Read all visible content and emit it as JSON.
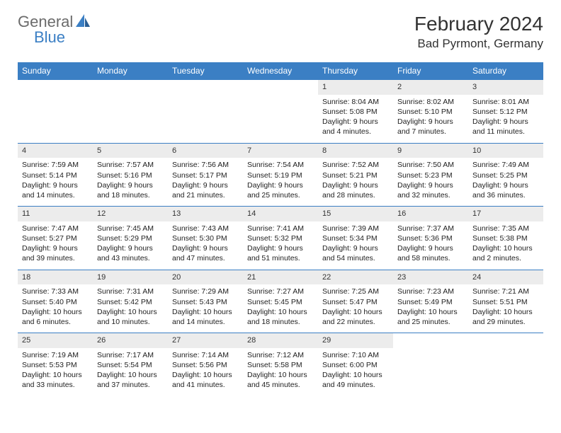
{
  "logo": {
    "general": "General",
    "blue": "Blue"
  },
  "title": "February 2024",
  "location": "Bad Pyrmont, Germany",
  "colors": {
    "header_bg": "#3b7fc4",
    "header_text": "#ffffff",
    "daynum_bg": "#ececec",
    "border": "#3b7fc4",
    "text": "#222222",
    "logo_gray": "#6b6b6b",
    "logo_blue": "#3b7fc4"
  },
  "day_headers": [
    "Sunday",
    "Monday",
    "Tuesday",
    "Wednesday",
    "Thursday",
    "Friday",
    "Saturday"
  ],
  "weeks": [
    [
      {
        "empty": true
      },
      {
        "empty": true
      },
      {
        "empty": true
      },
      {
        "empty": true
      },
      {
        "num": "1",
        "sunrise": "Sunrise: 8:04 AM",
        "sunset": "Sunset: 5:08 PM",
        "day1": "Daylight: 9 hours",
        "day2": "and 4 minutes."
      },
      {
        "num": "2",
        "sunrise": "Sunrise: 8:02 AM",
        "sunset": "Sunset: 5:10 PM",
        "day1": "Daylight: 9 hours",
        "day2": "and 7 minutes."
      },
      {
        "num": "3",
        "sunrise": "Sunrise: 8:01 AM",
        "sunset": "Sunset: 5:12 PM",
        "day1": "Daylight: 9 hours",
        "day2": "and 11 minutes."
      }
    ],
    [
      {
        "num": "4",
        "sunrise": "Sunrise: 7:59 AM",
        "sunset": "Sunset: 5:14 PM",
        "day1": "Daylight: 9 hours",
        "day2": "and 14 minutes."
      },
      {
        "num": "5",
        "sunrise": "Sunrise: 7:57 AM",
        "sunset": "Sunset: 5:16 PM",
        "day1": "Daylight: 9 hours",
        "day2": "and 18 minutes."
      },
      {
        "num": "6",
        "sunrise": "Sunrise: 7:56 AM",
        "sunset": "Sunset: 5:17 PM",
        "day1": "Daylight: 9 hours",
        "day2": "and 21 minutes."
      },
      {
        "num": "7",
        "sunrise": "Sunrise: 7:54 AM",
        "sunset": "Sunset: 5:19 PM",
        "day1": "Daylight: 9 hours",
        "day2": "and 25 minutes."
      },
      {
        "num": "8",
        "sunrise": "Sunrise: 7:52 AM",
        "sunset": "Sunset: 5:21 PM",
        "day1": "Daylight: 9 hours",
        "day2": "and 28 minutes."
      },
      {
        "num": "9",
        "sunrise": "Sunrise: 7:50 AM",
        "sunset": "Sunset: 5:23 PM",
        "day1": "Daylight: 9 hours",
        "day2": "and 32 minutes."
      },
      {
        "num": "10",
        "sunrise": "Sunrise: 7:49 AM",
        "sunset": "Sunset: 5:25 PM",
        "day1": "Daylight: 9 hours",
        "day2": "and 36 minutes."
      }
    ],
    [
      {
        "num": "11",
        "sunrise": "Sunrise: 7:47 AM",
        "sunset": "Sunset: 5:27 PM",
        "day1": "Daylight: 9 hours",
        "day2": "and 39 minutes."
      },
      {
        "num": "12",
        "sunrise": "Sunrise: 7:45 AM",
        "sunset": "Sunset: 5:29 PM",
        "day1": "Daylight: 9 hours",
        "day2": "and 43 minutes."
      },
      {
        "num": "13",
        "sunrise": "Sunrise: 7:43 AM",
        "sunset": "Sunset: 5:30 PM",
        "day1": "Daylight: 9 hours",
        "day2": "and 47 minutes."
      },
      {
        "num": "14",
        "sunrise": "Sunrise: 7:41 AM",
        "sunset": "Sunset: 5:32 PM",
        "day1": "Daylight: 9 hours",
        "day2": "and 51 minutes."
      },
      {
        "num": "15",
        "sunrise": "Sunrise: 7:39 AM",
        "sunset": "Sunset: 5:34 PM",
        "day1": "Daylight: 9 hours",
        "day2": "and 54 minutes."
      },
      {
        "num": "16",
        "sunrise": "Sunrise: 7:37 AM",
        "sunset": "Sunset: 5:36 PM",
        "day1": "Daylight: 9 hours",
        "day2": "and 58 minutes."
      },
      {
        "num": "17",
        "sunrise": "Sunrise: 7:35 AM",
        "sunset": "Sunset: 5:38 PM",
        "day1": "Daylight: 10 hours",
        "day2": "and 2 minutes."
      }
    ],
    [
      {
        "num": "18",
        "sunrise": "Sunrise: 7:33 AM",
        "sunset": "Sunset: 5:40 PM",
        "day1": "Daylight: 10 hours",
        "day2": "and 6 minutes."
      },
      {
        "num": "19",
        "sunrise": "Sunrise: 7:31 AM",
        "sunset": "Sunset: 5:42 PM",
        "day1": "Daylight: 10 hours",
        "day2": "and 10 minutes."
      },
      {
        "num": "20",
        "sunrise": "Sunrise: 7:29 AM",
        "sunset": "Sunset: 5:43 PM",
        "day1": "Daylight: 10 hours",
        "day2": "and 14 minutes."
      },
      {
        "num": "21",
        "sunrise": "Sunrise: 7:27 AM",
        "sunset": "Sunset: 5:45 PM",
        "day1": "Daylight: 10 hours",
        "day2": "and 18 minutes."
      },
      {
        "num": "22",
        "sunrise": "Sunrise: 7:25 AM",
        "sunset": "Sunset: 5:47 PM",
        "day1": "Daylight: 10 hours",
        "day2": "and 22 minutes."
      },
      {
        "num": "23",
        "sunrise": "Sunrise: 7:23 AM",
        "sunset": "Sunset: 5:49 PM",
        "day1": "Daylight: 10 hours",
        "day2": "and 25 minutes."
      },
      {
        "num": "24",
        "sunrise": "Sunrise: 7:21 AM",
        "sunset": "Sunset: 5:51 PM",
        "day1": "Daylight: 10 hours",
        "day2": "and 29 minutes."
      }
    ],
    [
      {
        "num": "25",
        "sunrise": "Sunrise: 7:19 AM",
        "sunset": "Sunset: 5:53 PM",
        "day1": "Daylight: 10 hours",
        "day2": "and 33 minutes."
      },
      {
        "num": "26",
        "sunrise": "Sunrise: 7:17 AM",
        "sunset": "Sunset: 5:54 PM",
        "day1": "Daylight: 10 hours",
        "day2": "and 37 minutes."
      },
      {
        "num": "27",
        "sunrise": "Sunrise: 7:14 AM",
        "sunset": "Sunset: 5:56 PM",
        "day1": "Daylight: 10 hours",
        "day2": "and 41 minutes."
      },
      {
        "num": "28",
        "sunrise": "Sunrise: 7:12 AM",
        "sunset": "Sunset: 5:58 PM",
        "day1": "Daylight: 10 hours",
        "day2": "and 45 minutes."
      },
      {
        "num": "29",
        "sunrise": "Sunrise: 7:10 AM",
        "sunset": "Sunset: 6:00 PM",
        "day1": "Daylight: 10 hours",
        "day2": "and 49 minutes."
      },
      {
        "empty": true
      },
      {
        "empty": true
      }
    ]
  ]
}
